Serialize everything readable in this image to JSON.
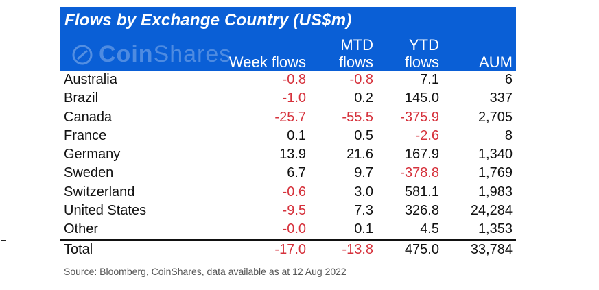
{
  "title": "Flows by Exchange Country (US$m)",
  "logo": {
    "brand_bold": "Coin",
    "brand_light": "Shares"
  },
  "headers": {
    "week": "Week flows",
    "mtd_line1": "MTD",
    "mtd_line2": "flows",
    "ytd_line1": "YTD",
    "ytd_line2": "flows",
    "aum": "AUM"
  },
  "rows": [
    {
      "name": "Australia",
      "week": "-0.8",
      "mtd": "-0.8",
      "ytd": "7.1",
      "aum": "6"
    },
    {
      "name": "Brazil",
      "week": "-1.0",
      "mtd": "0.2",
      "ytd": "145.0",
      "aum": "337"
    },
    {
      "name": "Canada",
      "week": "-25.7",
      "mtd": "-55.5",
      "ytd": "-375.9",
      "aum": "2,705"
    },
    {
      "name": "France",
      "week": "0.1",
      "mtd": "0.5",
      "ytd": "-2.6",
      "aum": "8"
    },
    {
      "name": "Germany",
      "week": "13.9",
      "mtd": "21.6",
      "ytd": "167.9",
      "aum": "1,340"
    },
    {
      "name": "Sweden",
      "week": "6.7",
      "mtd": "9.7",
      "ytd": "-378.8",
      "aum": "1,769"
    },
    {
      "name": "Switzerland",
      "week": "-0.6",
      "mtd": "3.0",
      "ytd": "581.1",
      "aum": "1,983"
    },
    {
      "name": "United States",
      "week": "-9.5",
      "mtd": "7.3",
      "ytd": "326.8",
      "aum": "24,284"
    },
    {
      "name": "Other",
      "week": "-0.0",
      "mtd": "0.1",
      "ytd": "4.5",
      "aum": "1,353"
    }
  ],
  "total": {
    "name": "Total",
    "week": "-17.0",
    "mtd": "-13.8",
    "ytd": "475.0",
    "aum": "33,784"
  },
  "source": "Source: Bloomberg, CoinShares, data available as at 12 Aug 2022",
  "colors": {
    "header_blue": "#0a5fd6",
    "negative_red": "#d6323c"
  }
}
